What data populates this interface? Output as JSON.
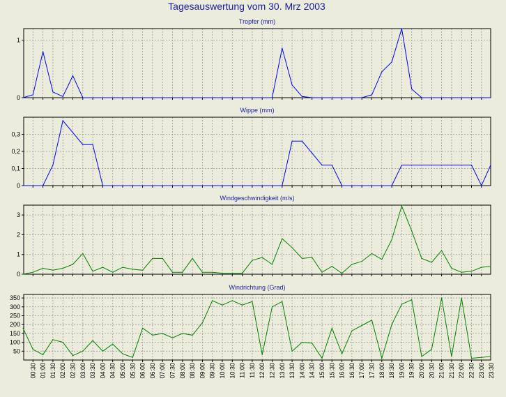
{
  "page_title": "Tagesauswertung vom 30. Mrz 2003",
  "colors": {
    "background": "#ececdd",
    "title": "#1a1aa8",
    "panel_title": "#1a1aa8",
    "blue_series": "#0000ff",
    "green_series": "#008000",
    "grid": "#9a9a9a",
    "axis": "#000000"
  },
  "time_labels": [
    "00:30",
    "01:00",
    "01:30",
    "02:00",
    "02:30",
    "03:00",
    "03:30",
    "04:00",
    "04:30",
    "05:00",
    "05:30",
    "06:00",
    "06:30",
    "07:00",
    "07:30",
    "08:00",
    "08:30",
    "09:00",
    "09:30",
    "10:00",
    "10:30",
    "11:00",
    "11:30",
    "12:00",
    "12:30",
    "13:00",
    "13:30",
    "14:00",
    "14:30",
    "15:00",
    "15:30",
    "16:00",
    "16:30",
    "17:00",
    "17:30",
    "18:00",
    "18:30",
    "19:00",
    "19:30",
    "20:00",
    "20:30",
    "21:00",
    "21:30",
    "22:00",
    "22:30",
    "23:00",
    "23:30"
  ],
  "chart_data": [
    {
      "type": "line",
      "title": "Tropfer (mm)",
      "color": "blue",
      "ylim": [
        0,
        1.2
      ],
      "yticks": [
        0,
        1
      ],
      "ytick_labels": [
        "0",
        "1"
      ],
      "grid": true,
      "values": [
        0,
        0.05,
        0.8,
        0.1,
        0.02,
        0.38,
        0,
        0,
        0,
        0,
        0,
        0,
        0,
        0,
        0,
        0,
        0,
        0,
        0,
        0,
        0,
        0,
        0,
        0,
        0,
        0,
        0.86,
        0.22,
        0.02,
        0,
        0,
        0,
        0,
        0,
        0,
        0.05,
        0.45,
        0.62,
        1.2,
        0.15,
        0,
        0,
        0,
        0,
        0,
        0,
        0,
        0
      ]
    },
    {
      "type": "line",
      "title": "Wippe (mm)",
      "color": "blue",
      "ylim": [
        0,
        0.4
      ],
      "yticks": [
        0,
        0.1,
        0.2,
        0.3
      ],
      "ytick_labels": [
        "0",
        "0,1",
        "0,2",
        "0,3"
      ],
      "grid": true,
      "values": [
        0,
        0,
        0,
        0.12,
        0.38,
        0.31,
        0.24,
        0.24,
        0,
        0,
        0,
        0,
        0,
        0,
        0,
        0,
        0,
        0,
        0,
        0,
        0,
        0,
        0,
        0,
        0,
        0,
        0,
        0.26,
        0.26,
        0.19,
        0.12,
        0.12,
        0,
        0,
        0,
        0,
        0,
        0,
        0.12,
        0.12,
        0.12,
        0.12,
        0.12,
        0.12,
        0.12,
        0.12,
        0,
        0.12,
        0.12
      ]
    },
    {
      "type": "line",
      "title": "Windgeschwindigkeit (m/s)",
      "color": "green",
      "ylim": [
        0,
        3.5
      ],
      "yticks": [
        0,
        1,
        2,
        3
      ],
      "ytick_labels": [
        "0",
        "1",
        "2",
        "3"
      ],
      "grid": true,
      "values": [
        0,
        0.1,
        0.3,
        0.2,
        0.3,
        0.5,
        1.05,
        0.15,
        0.35,
        0.1,
        0.35,
        0.25,
        0.2,
        0.8,
        0.8,
        0.1,
        0.1,
        0.8,
        0.1,
        0.1,
        0.05,
        0.05,
        0.05,
        0.7,
        0.85,
        0.5,
        1.8,
        1.35,
        0.8,
        0.85,
        0.1,
        0.4,
        0.05,
        0.5,
        0.65,
        1.05,
        0.75,
        1.75,
        3.45,
        2.2,
        0.8,
        0.6,
        1.2,
        0.3,
        0.1,
        0.15,
        0.35,
        0.4
      ]
    },
    {
      "type": "line",
      "title": "Windrichtung (Grad)",
      "color": "green",
      "ylim": [
        0,
        370
      ],
      "yticks": [
        50,
        100,
        150,
        200,
        250,
        300,
        350
      ],
      "ytick_labels": [
        "50",
        "100",
        "150",
        "200",
        "250",
        "300",
        "350"
      ],
      "grid": true,
      "values": [
        180,
        60,
        30,
        115,
        100,
        25,
        50,
        110,
        50,
        90,
        35,
        15,
        180,
        140,
        150,
        125,
        150,
        140,
        210,
        335,
        310,
        335,
        310,
        330,
        30,
        300,
        330,
        50,
        100,
        95,
        10,
        180,
        35,
        165,
        195,
        225,
        10,
        200,
        315,
        340,
        20,
        60,
        350,
        20,
        350,
        10,
        15,
        20
      ]
    }
  ]
}
